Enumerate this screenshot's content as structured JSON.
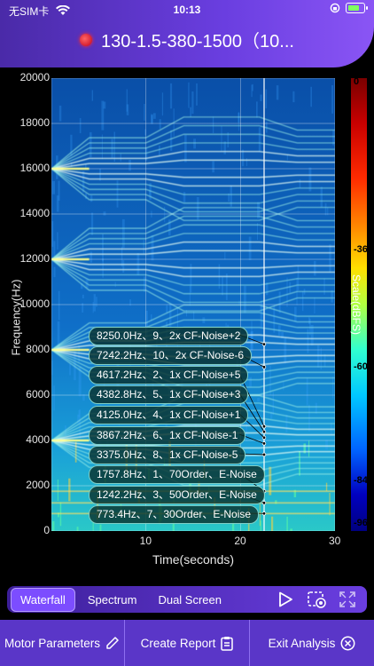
{
  "status_bar": {
    "carrier": "无SIM卡",
    "time": "10:13"
  },
  "header": {
    "title": "130-1.5-380-1500（10..."
  },
  "chart_data": {
    "type": "heatmap",
    "title": "",
    "xlabel": "Time(seconds)",
    "ylabel": "Frequency(Hz)",
    "xlim": [
      0,
      30
    ],
    "ylim": [
      0,
      20000
    ],
    "x_ticks": [
      "10",
      "20",
      "30"
    ],
    "y_ticks": [
      "0",
      "2000",
      "4000",
      "6000",
      "8000",
      "10000",
      "12000",
      "14000",
      "16000",
      "18000",
      "20000"
    ],
    "colorbar": {
      "label": "Scale(dBFS)",
      "ticks": [
        "0",
        "-36",
        "-60",
        "-84",
        "-96"
      ]
    },
    "cursor_time": 22.5,
    "annotations": [
      {
        "label": "8250.0Hz、9、2x CF-Noise+2",
        "freq": 8250
      },
      {
        "label": "7242.2Hz、10、2x CF-Noise-6",
        "freq": 7242.2
      },
      {
        "label": "4617.2Hz、2、1x CF-Noise+5",
        "freq": 4617.2
      },
      {
        "label": "4382.8Hz、5、1x CF-Noise+3",
        "freq": 4382.8
      },
      {
        "label": "4125.0Hz、4、1x CF-Noise+1",
        "freq": 4125.0
      },
      {
        "label": "3867.2Hz、6、1x CF-Noise-1",
        "freq": 3867.2
      },
      {
        "label": "3375.0Hz、8、1x CF-Noise-5",
        "freq": 3375.0
      },
      {
        "label": "1757.8Hz、1、70Order、E-Noise",
        "freq": 1757.8
      },
      {
        "label": "1242.2Hz、3、50Order、E-Noise",
        "freq": 1242.2
      },
      {
        "label": "773.4Hz、7、30Order、E-Noise",
        "freq": 773.4
      }
    ]
  },
  "tabs": [
    "Waterfall",
    "Spectrum",
    "Dual Screen"
  ],
  "active_tab": "Waterfall",
  "toolbar_icons": [
    "play-icon",
    "screenshot-icon",
    "fullscreen-icon"
  ],
  "bottom_buttons": [
    {
      "label": "Motor Parameters",
      "icon": "pencil-icon"
    },
    {
      "label": "Create Report",
      "icon": "clipboard-icon"
    },
    {
      "label": "Exit Analysis",
      "icon": "close-circle-icon"
    }
  ],
  "colors": {
    "accent": "#6a3ee0",
    "header_end": "#8a55f5",
    "tab_active": "#7c4dff"
  }
}
